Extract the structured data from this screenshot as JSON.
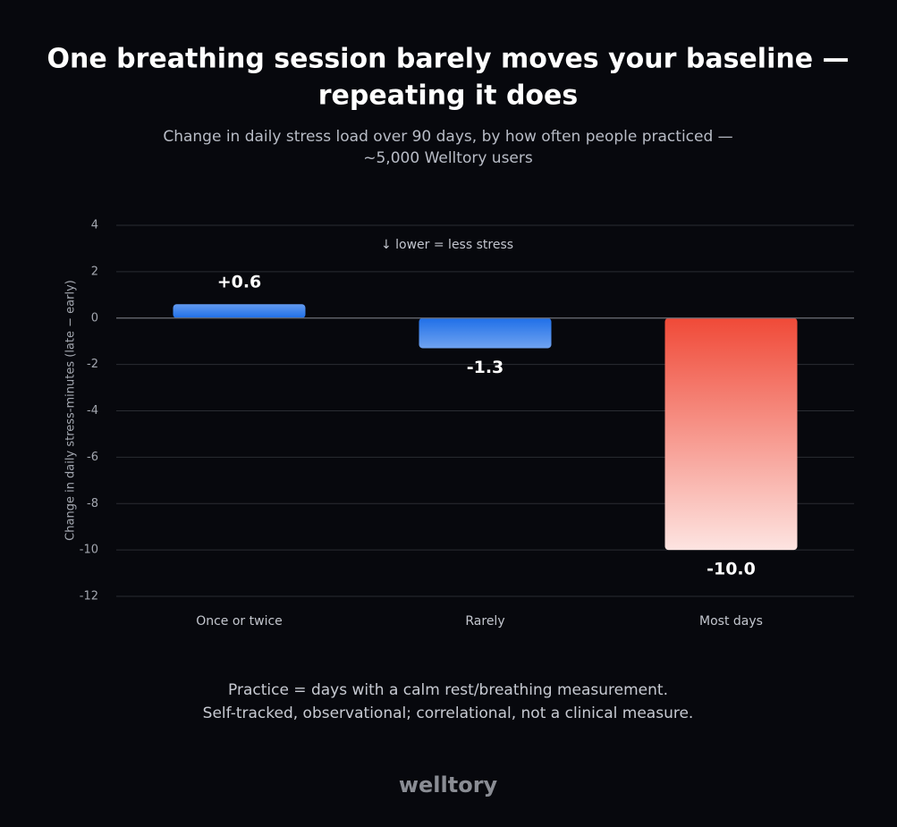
{
  "chart_data": {
    "type": "bar",
    "title": [
      "One breathing session barely moves your baseline —",
      "repeating it does"
    ],
    "subtitle": [
      "Change in daily stress load over 90 days, by how often people practiced —",
      "~5,000 Welltory users"
    ],
    "y_label": "Change in daily stress-minutes (late − early)",
    "annotation": "↓ lower = less stress",
    "categories": [
      "Once or twice",
      "Rarely",
      "Most days"
    ],
    "values": [
      0.6,
      -1.3,
      -10.0
    ],
    "value_labels": [
      "+0.6",
      "-1.3",
      "-10.0"
    ],
    "colors": [
      "#1f6fe8",
      "#1f6fe8",
      "#f04a38"
    ],
    "ylim": [
      -12,
      4
    ],
    "yticks": [
      4,
      2,
      0,
      -2,
      -4,
      -6,
      -8,
      -10,
      -12
    ],
    "grid": true,
    "note": [
      "Practice = days with a calm rest/breathing measurement.",
      "Self-tracked, observational; correlational, not a clinical measure."
    ],
    "brand": "welltory"
  }
}
